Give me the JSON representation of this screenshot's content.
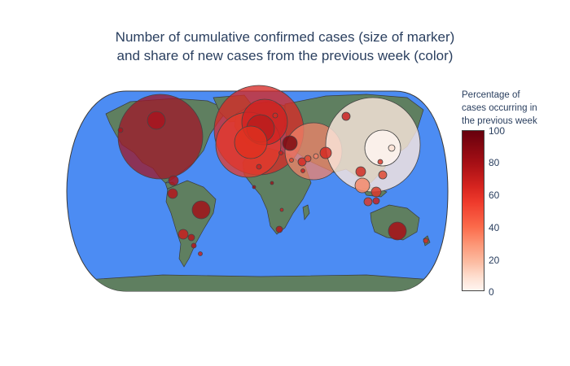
{
  "title": {
    "line1": "Number of cumulative confirmed cases (size of marker)",
    "line2": "and share of new cases from the previous week (color)"
  },
  "colorbar": {
    "title_line1": "Percentage of",
    "title_line2": "cases occurring in",
    "title_line3": "the previous week",
    "ticks": [
      "100",
      "80",
      "60",
      "40",
      "20",
      "0"
    ],
    "colorscale": "Reds"
  },
  "colors": {
    "ocean": "#4c8cf3",
    "land": "#5f7f60",
    "border": "#3a3a3a",
    "marker_outline": "#444444"
  },
  "chart_data": {
    "type": "scatter",
    "projection": "natural earth",
    "color_range": [
      0,
      100
    ],
    "markers": [
      {
        "region": "North America",
        "lon": -100,
        "lat": 42,
        "pct": 80,
        "size": "largest"
      },
      {
        "region": "Europe (central)",
        "lon": 2,
        "lat": 48,
        "pct": 72
      },
      {
        "region": "Europe (west)",
        "lon": -5,
        "lat": 42,
        "pct": 68
      },
      {
        "region": "Europe (north)",
        "lon": 10,
        "lat": 56,
        "pct": 70
      },
      {
        "region": "Russia",
        "lon": 45,
        "lat": 45,
        "pct": 55
      },
      {
        "region": "China",
        "lon": 104,
        "lat": 35,
        "pct": 8
      },
      {
        "region": "East China",
        "lon": 112,
        "lat": 31,
        "pct": 2
      },
      {
        "region": "Brazil",
        "lon": -50,
        "lat": -12,
        "pct": 85
      },
      {
        "region": "Australia",
        "lon": 134,
        "lat": -26,
        "pct": 88
      },
      {
        "region": "South Korea",
        "lon": 128,
        "lat": 36,
        "pct": 12
      },
      {
        "region": "India",
        "lon": 78,
        "lat": 20,
        "pct": 90
      },
      {
        "region": "Iran",
        "lon": 53,
        "lat": 32,
        "pct": 70
      },
      {
        "region": "Southeast Asia",
        "lon": 105,
        "lat": 10,
        "pct": 45
      }
    ]
  }
}
